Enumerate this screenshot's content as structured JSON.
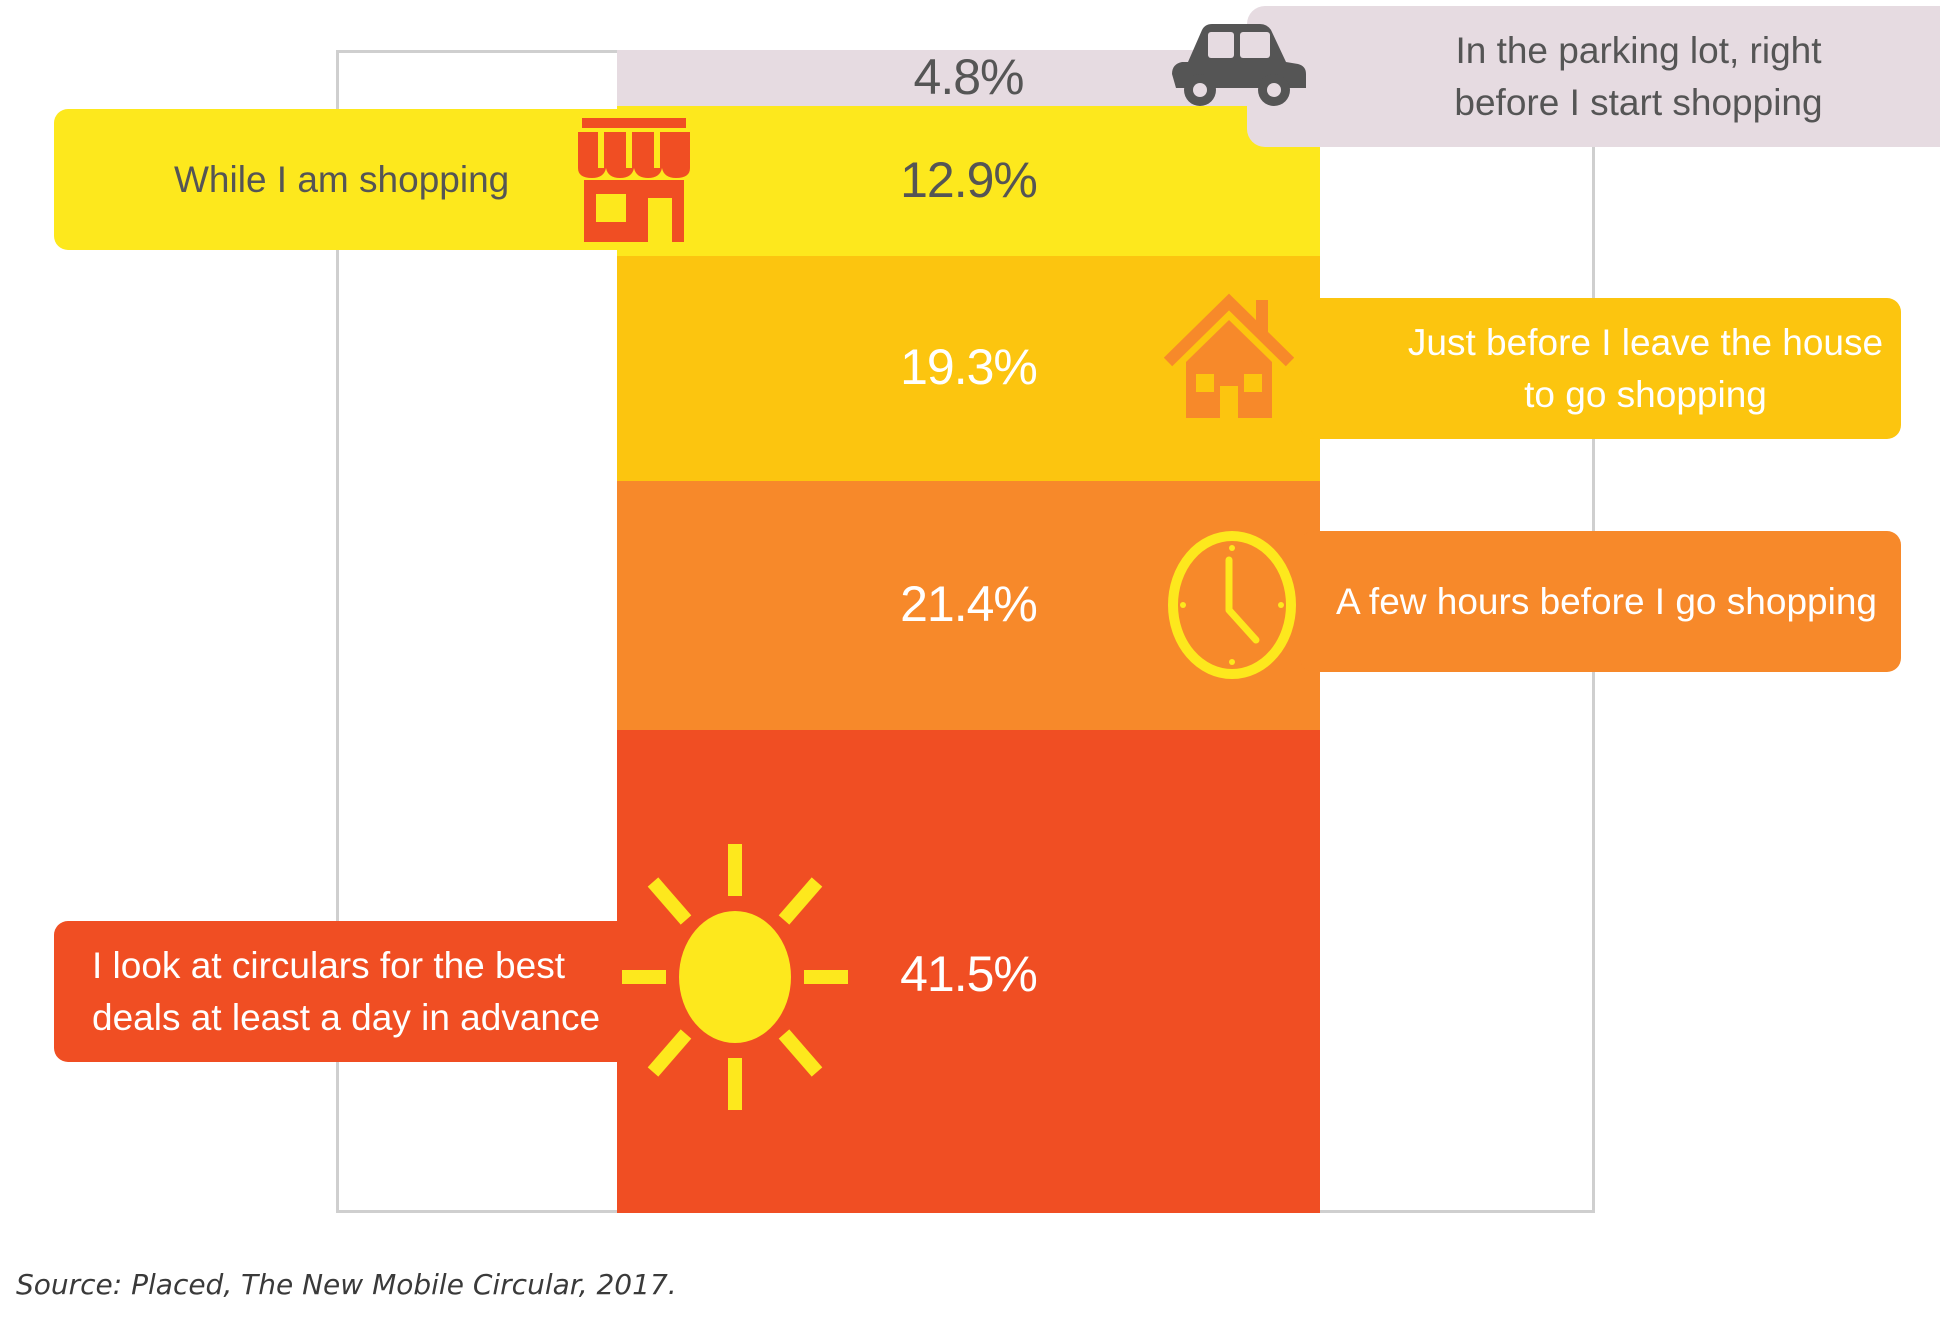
{
  "chart_data": {
    "type": "bar",
    "subtype": "stacked-100",
    "categories": [
      "In the parking lot, right before I start shopping",
      "While I am shopping",
      "Just before I leave the house to go shopping",
      "A few hours before I go shopping",
      "I look at circulars for the best deals at least a day in advance"
    ],
    "values": [
      4.8,
      12.9,
      19.3,
      21.4,
      41.5
    ],
    "value_labels": [
      "4.8%",
      "12.9%",
      "19.3%",
      "21.4%",
      "41.5%"
    ],
    "segment_colors": [
      "#e6dbe1",
      "#fde81d",
      "#fcc50f",
      "#f7892a",
      "#f04e23"
    ],
    "value_text_colors": [
      "#555555",
      "#555555",
      "#ffffff",
      "#ffffff",
      "#ffffff"
    ],
    "stack_order": "top-to-bottom",
    "ylim": [
      0,
      100
    ],
    "title": "",
    "xlabel": "",
    "ylabel": ""
  },
  "labels": {
    "parking": {
      "line1": "In the parking lot, right",
      "line2": "before I start shopping",
      "icon": "car-icon"
    },
    "shopping": {
      "line1": "While I am shopping",
      "icon": "storefront-icon"
    },
    "house": {
      "line1": "Just before I leave the house",
      "line2": "to go shopping",
      "icon": "house-icon"
    },
    "hours": {
      "line1": "A few hours before I go shopping",
      "icon": "clock-icon"
    },
    "advance": {
      "line1": "I look at circulars for the best",
      "line2": "deals at least a day in advance",
      "icon": "sun-icon"
    }
  },
  "source": "Source: Placed, The New Mobile Circular, 2017."
}
